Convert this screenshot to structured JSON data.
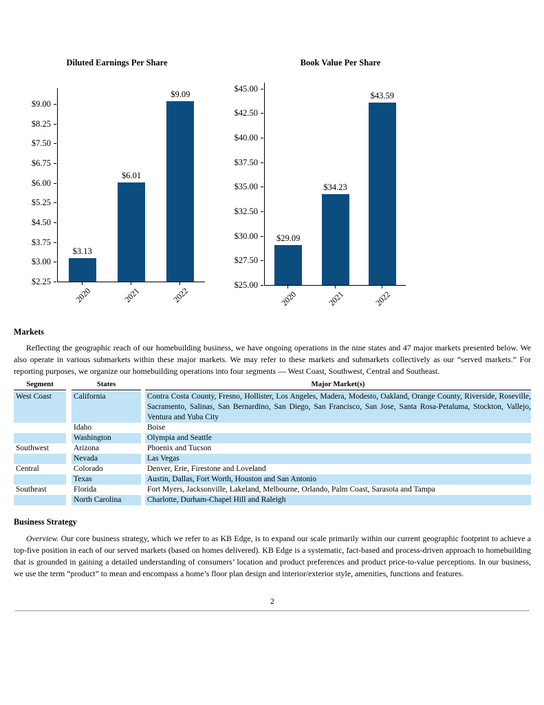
{
  "colors": {
    "bar": "#0b4d7e",
    "row_highlight": "#c0e4f6"
  },
  "chart_data": [
    {
      "type": "bar",
      "title": "Diluted Earnings Per Share",
      "categories": [
        "2020",
        "2021",
        "2022"
      ],
      "values": [
        3.13,
        6.01,
        9.09
      ],
      "data_labels": [
        "$3.13",
        "$6.01",
        "$9.09"
      ],
      "xlabel": "",
      "ylabel": "",
      "ylim": [
        2.25,
        9.6
      ],
      "yticks": [
        2.25,
        3.0,
        3.75,
        4.5,
        5.25,
        6.0,
        6.75,
        7.5,
        8.25,
        9.0
      ],
      "ytick_labels": [
        "$2.25",
        "$3.00",
        "$3.75",
        "$4.50",
        "$5.25",
        "$6.00",
        "$6.75",
        "$7.50",
        "$8.25",
        "$9.00"
      ],
      "grid": false,
      "legend": "none",
      "bar_color": "#0b4d7e"
    },
    {
      "type": "bar",
      "title": "Book Value Per Share",
      "categories": [
        "2020",
        "2021",
        "2022"
      ],
      "values": [
        29.09,
        34.23,
        43.59
      ],
      "data_labels": [
        "$29.09",
        "$34.23",
        "$43.59"
      ],
      "xlabel": "",
      "ylabel": "",
      "ylim": [
        25,
        45.6
      ],
      "yticks": [
        25.0,
        27.5,
        30.0,
        32.5,
        35.0,
        37.5,
        40.0,
        42.5,
        45.0
      ],
      "ytick_labels": [
        "$25.00",
        "$27.50",
        "$30.00",
        "$32.50",
        "$35.00",
        "$37.50",
        "$40.00",
        "$42.50",
        "$45.00"
      ],
      "grid": false,
      "legend": "none",
      "bar_color": "#0b4d7e"
    }
  ],
  "markets": {
    "heading": "Markets",
    "paragraph": "Reflecting the geographic reach of our homebuilding business, we have ongoing operations in the nine states and 47 major markets presented below. We also operate in various submarkets within these major markets. We may refer to these markets and submarkets collectively as our “served markets.” For reporting purposes, we organize our homebuilding operations into four segments — West Coast, Southwest, Central and Southeast.",
    "table": {
      "headers": [
        "Segment",
        "States",
        "Major Market(s)"
      ],
      "rows": [
        {
          "segment": "West Coast",
          "state": "California",
          "markets": "Contra Costa County, Fresno, Hollister, Los Angeles, Madera, Modesto, Oakland, Orange County, Riverside, Roseville, Sacramento, Salinas, San Bernardino, San Diego, San Francisco, San Jose, Santa Rosa-Petaluma, Stockton, Vallejo, Ventura and Yuba City"
        },
        {
          "segment": "",
          "state": "Idaho",
          "markets": "Boise"
        },
        {
          "segment": "",
          "state": "Washington",
          "markets": "Olympia and Seattle"
        },
        {
          "segment": "Southwest",
          "state": "Arizona",
          "markets": "Phoenix and Tucson"
        },
        {
          "segment": "",
          "state": "Nevada",
          "markets": "Las Vegas"
        },
        {
          "segment": "Central",
          "state": "Colorado",
          "markets": "Denver, Erie, Firestone and Loveland"
        },
        {
          "segment": "",
          "state": "Texas",
          "markets": "Austin, Dallas, Fort Worth, Houston and San Antonio"
        },
        {
          "segment": "Southeast",
          "state": "Florida",
          "markets": "Fort Myers, Jacksonville, Lakeland, Melbourne, Orlando, Palm Coast, Sarasota and Tampa"
        },
        {
          "segment": "",
          "state": "North Carolina",
          "markets": "Charlotte, Durham-Chapel Hill and Raleigh"
        }
      ]
    }
  },
  "strategy": {
    "heading": "Business Strategy",
    "lead": "Overview.",
    "body": " Our core business strategy, which we refer to as KB Edge, is to expand our scale primarily within our current geographic footprint to achieve a top-five position in each of our served markets (based on homes delivered). KB Edge is a systematic, fact-based and process-driven approach to homebuilding that is grounded in gaining a detailed understanding of consumers’ location and product preferences and product price-to-value perceptions. In our business, we use the term “product” to mean and encompass a home’s floor plan design and interior/exterior style, amenities, functions and features."
  },
  "footer": {
    "page_number": "2"
  }
}
